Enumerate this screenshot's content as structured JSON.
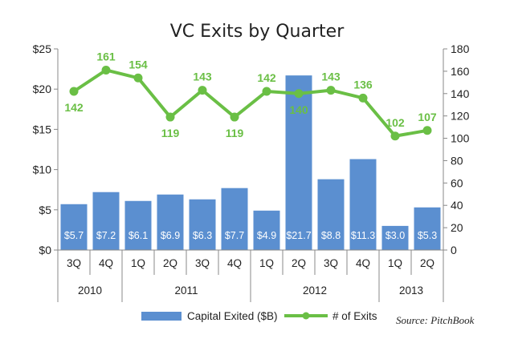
{
  "chart_data": {
    "type": "bar",
    "title": "VC Exits by Quarter",
    "categories": [
      "3Q",
      "4Q",
      "1Q",
      "2Q",
      "3Q",
      "4Q",
      "1Q",
      "2Q",
      "3Q",
      "4Q",
      "1Q",
      "2Q"
    ],
    "year_groups": [
      {
        "label": "2010",
        "count": 2
      },
      {
        "label": "2011",
        "count": 4
      },
      {
        "label": "2012",
        "count": 4
      },
      {
        "label": "2013",
        "count": 2
      }
    ],
    "series": [
      {
        "name": "Capital Exited ($B)",
        "type": "bar",
        "axis": "left",
        "values": [
          5.7,
          7.2,
          6.1,
          6.9,
          6.3,
          7.7,
          4.9,
          21.7,
          8.8,
          11.3,
          3.0,
          5.3
        ],
        "labels": [
          "$5.7",
          "$7.2",
          "$6.1",
          "$6.9",
          "$6.3",
          "$7.7",
          "$4.9",
          "$21.7",
          "$8.8",
          "$11.3",
          "$3.0",
          "$5.3"
        ],
        "color": "#5b8fd0"
      },
      {
        "name": "# of Exits",
        "type": "line",
        "axis": "right",
        "values": [
          142,
          161,
          154,
          119,
          143,
          119,
          142,
          140,
          143,
          136,
          102,
          107
        ],
        "label_pos": [
          "below",
          "above",
          "above",
          "below",
          "above",
          "below",
          "above",
          "below",
          "above",
          "above",
          "above",
          "above"
        ],
        "color": "#6abf45"
      }
    ],
    "y_left": {
      "ylim": [
        0,
        25
      ],
      "ticks": [
        0,
        5,
        10,
        15,
        20,
        25
      ],
      "tick_labels": [
        "$0",
        "$5",
        "$10",
        "$15",
        "$20",
        "$25"
      ]
    },
    "y_right": {
      "ylim": [
        0,
        180
      ],
      "ticks": [
        0,
        20,
        40,
        60,
        80,
        100,
        120,
        140,
        160,
        180
      ],
      "tick_labels": [
        "0",
        "20",
        "40",
        "60",
        "80",
        "100",
        "120",
        "140",
        "160",
        "180"
      ]
    },
    "grid": false,
    "legend_position": "bottom",
    "source": "Source: PitchBook"
  }
}
